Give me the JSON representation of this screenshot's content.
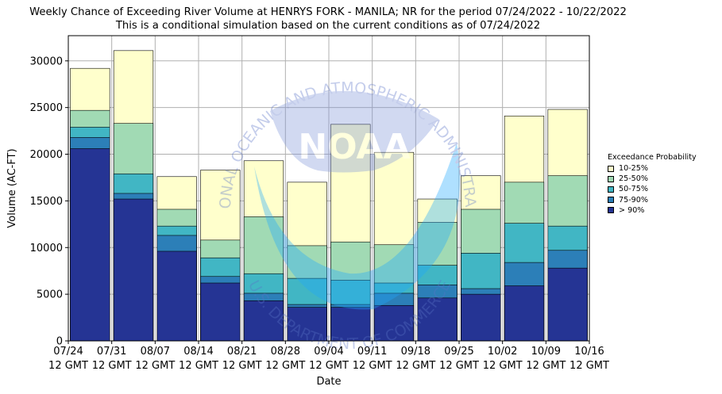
{
  "title": "Weekly Chance of Exceeding River Volume at HENRYS FORK - MANILA; NR for the period 07/24/2022 - 10/22/2022",
  "subtitle": "This is a conditional simulation based on the current conditions as of 07/24/2022",
  "watermark": {
    "logo_text": "NOAA",
    "ring_text": "NATIONAL OCEANIC AND ATMOSPHERIC ADMINISTRATION",
    "ring_text_bottom": "U.S. DEPARTMENT OF COMMERCE"
  },
  "chart_data": {
    "type": "bar",
    "xlabel": "Date",
    "ylabel": "Volume (AC-FT)",
    "ylim": [
      0,
      32700
    ],
    "yticks": [
      0,
      5000,
      10000,
      15000,
      20000,
      25000,
      30000
    ],
    "ytick_labels": [
      "0",
      "5000",
      "10000",
      "15000",
      "20000",
      "25000",
      "30000"
    ],
    "xtick_labels": [
      [
        "07/24",
        "12 GMT"
      ],
      [
        "07/31",
        "12 GMT"
      ],
      [
        "08/07",
        "12 GMT"
      ],
      [
        "08/14",
        "12 GMT"
      ],
      [
        "08/21",
        "12 GMT"
      ],
      [
        "08/28",
        "12 GMT"
      ],
      [
        "09/04",
        "12 GMT"
      ],
      [
        "09/11",
        "12 GMT"
      ],
      [
        "09/18",
        "12 GMT"
      ],
      [
        "09/25",
        "12 GMT"
      ],
      [
        "10/02",
        "12 GMT"
      ],
      [
        "10/09",
        "12 GMT"
      ],
      [
        "10/16",
        "12 GMT"
      ]
    ],
    "grid": true,
    "legend_title": "Exceedance Probability",
    "legend_position": "right",
    "series": [
      {
        "name": "10-25%",
        "color": "#ffffcc",
        "values": [
          29200,
          31100,
          17600,
          18300,
          19300,
          17000,
          23200,
          20200,
          15200,
          17700,
          24100,
          24800
        ]
      },
      {
        "name": "25-50%",
        "color": "#a1dab4",
        "values": [
          24700,
          23300,
          14100,
          10800,
          13300,
          10200,
          10600,
          10300,
          12700,
          14100,
          17000,
          17700
        ]
      },
      {
        "name": "50-75%",
        "color": "#41b6c4",
        "values": [
          22900,
          17900,
          12300,
          8900,
          7200,
          6700,
          6500,
          6200,
          8100,
          9400,
          12600,
          12300
        ]
      },
      {
        "name": "75-90%",
        "color": "#2c7fb8",
        "values": [
          21800,
          15800,
          11300,
          6900,
          5100,
          3900,
          3900,
          5100,
          6000,
          5600,
          8400,
          9700
        ]
      },
      {
        "name": "> 90%",
        "color": "#253494",
        "values": [
          20600,
          15200,
          9600,
          6200,
          4300,
          3600,
          3600,
          3800,
          4600,
          5000,
          5900,
          7800
        ]
      }
    ]
  }
}
